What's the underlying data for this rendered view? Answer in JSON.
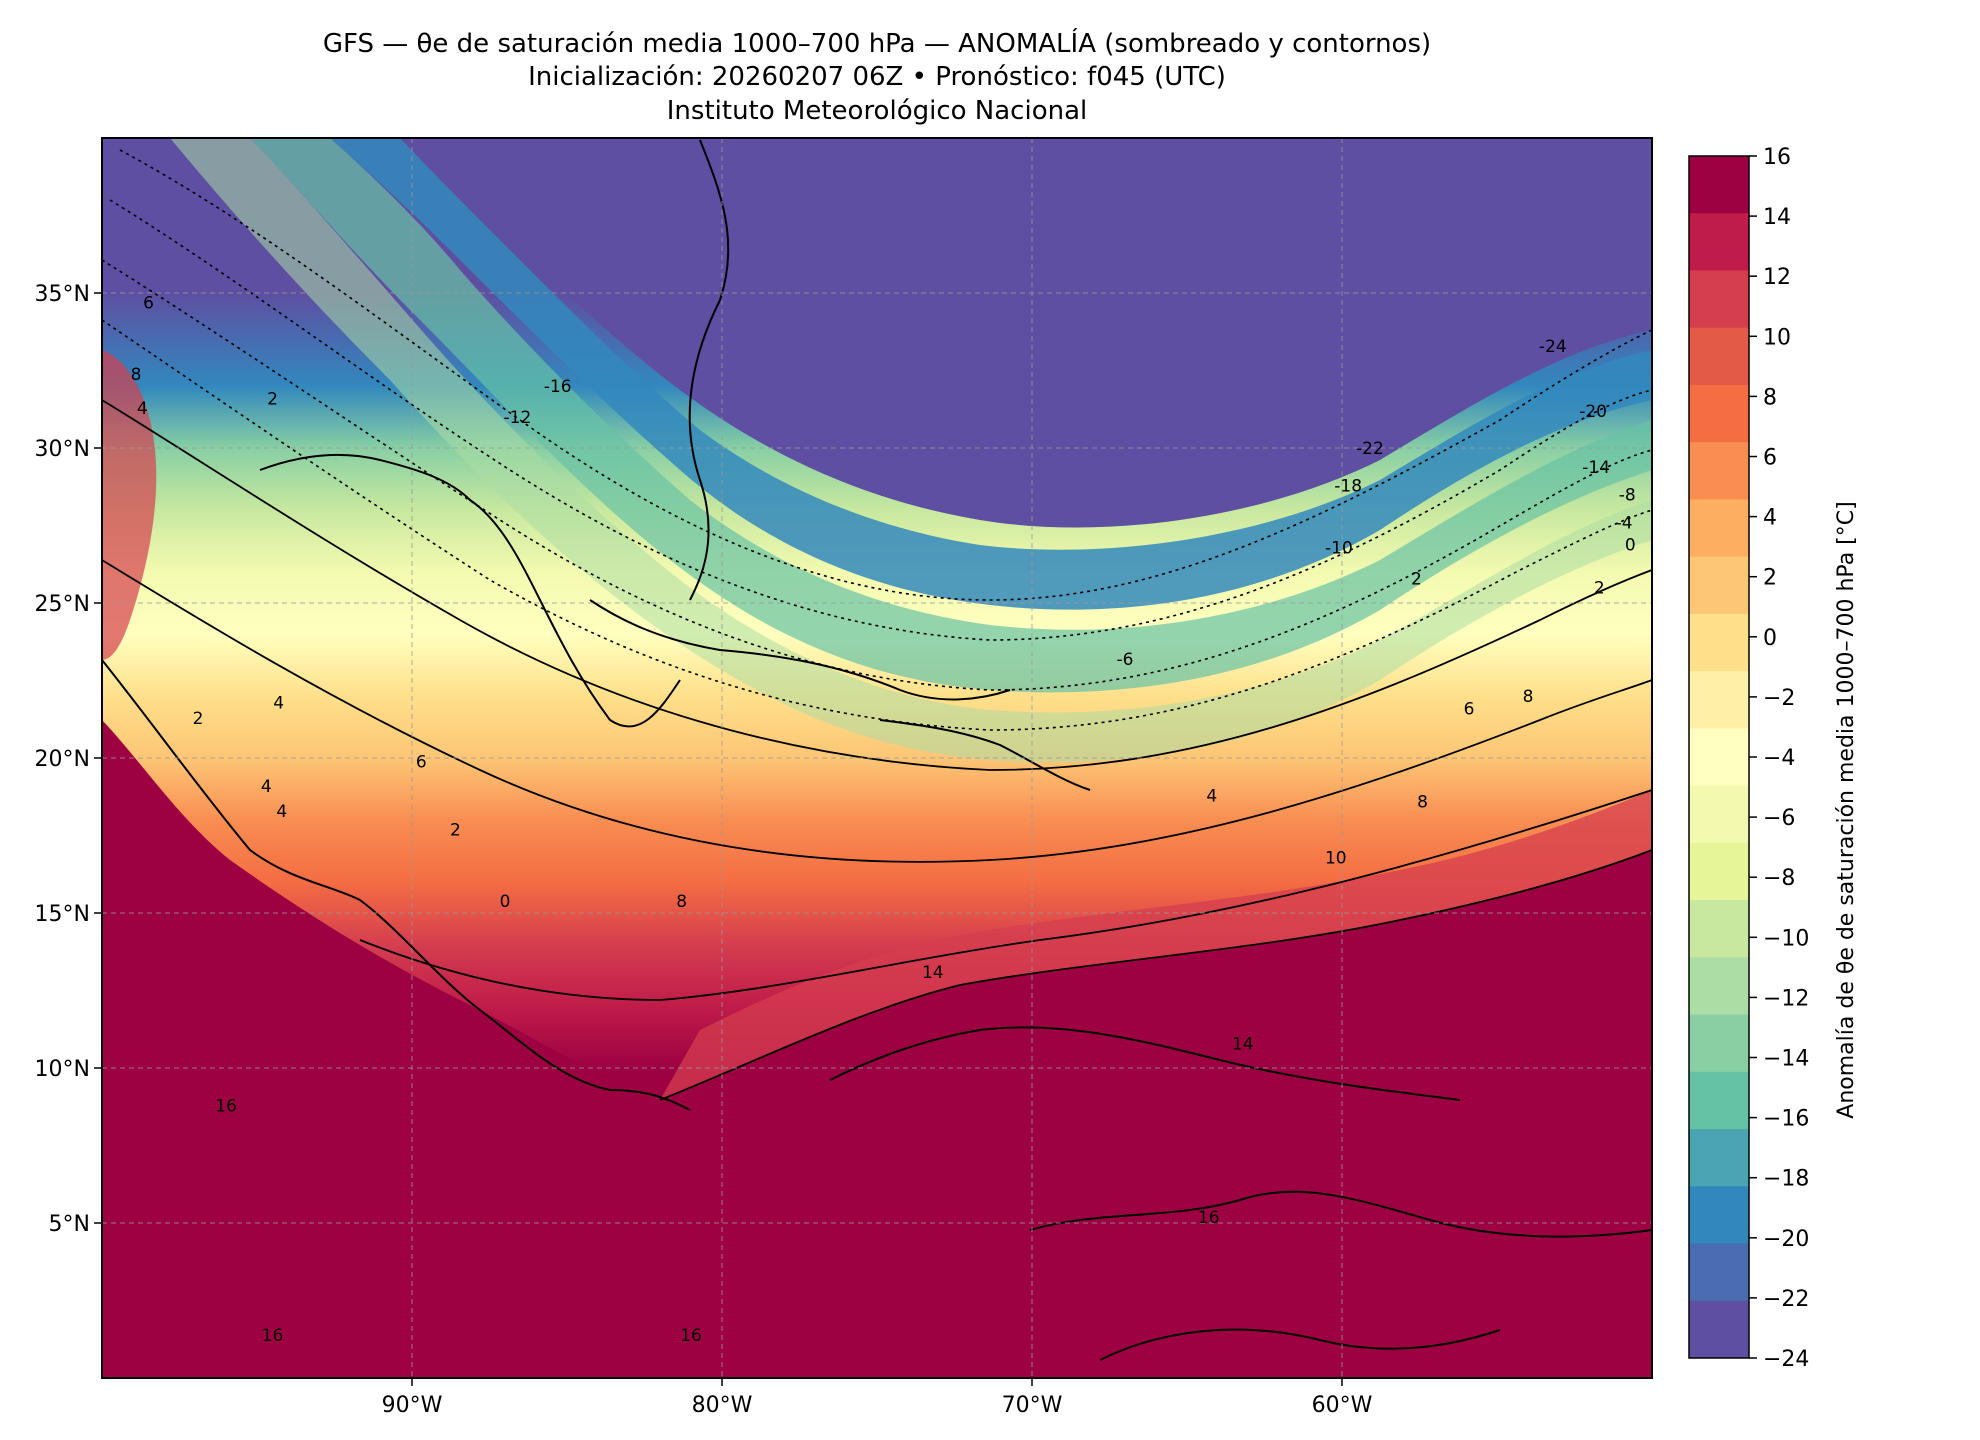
{
  "header": {
    "title_line1": "GFS — θe de saturación media 1000–700 hPa — ANOMALÍA (sombreado y contornos)",
    "title_line2": "Inicialización: 20260207 06Z   •   Pronóstico: f045 (UTC)",
    "title_line3": "Instituto Meteorológico Nacional"
  },
  "map": {
    "lon_range": [
      -100,
      -50
    ],
    "lat_range": [
      0,
      40
    ],
    "lat_ticks": [
      {
        "value": 35,
        "label": "35°N"
      },
      {
        "value": 30,
        "label": "30°N"
      },
      {
        "value": 25,
        "label": "25°N"
      },
      {
        "value": 20,
        "label": "20°N"
      },
      {
        "value": 15,
        "label": "15°N"
      },
      {
        "value": 10,
        "label": "10°N"
      },
      {
        "value": 5,
        "label": "5°N"
      }
    ],
    "lon_ticks": [
      {
        "value": -90,
        "label": "90°W"
      },
      {
        "value": -80,
        "label": "80°W"
      },
      {
        "value": -70,
        "label": "70°W"
      },
      {
        "value": -60,
        "label": "60°W"
      }
    ],
    "gridlines": true,
    "field_bands": [
      {
        "lat": 40,
        "value": -24
      },
      {
        "lat": 35,
        "value": -24
      },
      {
        "lat": 32,
        "value": -20
      },
      {
        "lat": 30,
        "value": -14
      },
      {
        "lat": 28,
        "value": -10
      },
      {
        "lat": 26,
        "value": -6
      },
      {
        "lat": 24,
        "value": -3
      },
      {
        "lat": 22,
        "value": 0
      },
      {
        "lat": 20,
        "value": 3
      },
      {
        "lat": 18,
        "value": 6
      },
      {
        "lat": 16,
        "value": 9
      },
      {
        "lat": 14,
        "value": 12
      },
      {
        "lat": 12,
        "value": 14
      },
      {
        "lat": 10,
        "value": 16
      },
      {
        "lat": 0,
        "value": 16
      }
    ],
    "contour_labels": [
      {
        "text": "-24",
        "lon": -53.2,
        "lat": 33.1
      },
      {
        "text": "-22",
        "lon": -59.1,
        "lat": 29.8
      },
      {
        "text": "-20",
        "lon": -51.9,
        "lat": 31.0
      },
      {
        "text": "-18",
        "lon": -59.8,
        "lat": 28.6
      },
      {
        "text": "-16",
        "lon": -85.3,
        "lat": 31.8
      },
      {
        "text": "-14",
        "lon": -51.8,
        "lat": 29.2
      },
      {
        "text": "-12",
        "lon": -86.6,
        "lat": 30.8
      },
      {
        "text": "-10",
        "lon": -60.1,
        "lat": 26.6
      },
      {
        "text": "-8",
        "lon": -50.8,
        "lat": 28.3
      },
      {
        "text": "-6",
        "lon": -67.0,
        "lat": 23.0
      },
      {
        "text": "-4",
        "lon": -50.9,
        "lat": 27.4
      },
      {
        "text": "0",
        "lon": -50.7,
        "lat": 26.7
      },
      {
        "text": "2",
        "lon": -57.6,
        "lat": 25.6
      },
      {
        "text": "2",
        "lon": -51.7,
        "lat": 25.3
      },
      {
        "text": "6",
        "lon": -98.5,
        "lat": 34.5
      },
      {
        "text": "8",
        "lon": -98.9,
        "lat": 32.2
      },
      {
        "text": "4",
        "lon": -98.7,
        "lat": 31.1
      },
      {
        "text": "2",
        "lon": -94.5,
        "lat": 31.4
      },
      {
        "text": "2",
        "lon": -96.9,
        "lat": 21.1
      },
      {
        "text": "4",
        "lon": -94.3,
        "lat": 21.6
      },
      {
        "text": "6",
        "lon": -89.7,
        "lat": 19.7
      },
      {
        "text": "4",
        "lon": -94.7,
        "lat": 18.9
      },
      {
        "text": "4",
        "lon": -94.2,
        "lat": 18.1
      },
      {
        "text": "2",
        "lon": -88.6,
        "lat": 17.5
      },
      {
        "text": "0",
        "lon": -87.0,
        "lat": 15.2
      },
      {
        "text": "8",
        "lon": -81.3,
        "lat": 15.2
      },
      {
        "text": "4",
        "lon": -64.2,
        "lat": 18.6
      },
      {
        "text": "6",
        "lon": -55.9,
        "lat": 21.4
      },
      {
        "text": "8",
        "lon": -54.0,
        "lat": 21.8
      },
      {
        "text": "8",
        "lon": -57.4,
        "lat": 18.4
      },
      {
        "text": "10",
        "lon": -60.2,
        "lat": 16.6
      },
      {
        "text": "14",
        "lon": -73.2,
        "lat": 12.9
      },
      {
        "text": "14",
        "lon": -63.2,
        "lat": 10.6
      },
      {
        "text": "16",
        "lon": -96.0,
        "lat": 8.6
      },
      {
        "text": "16",
        "lon": -64.3,
        "lat": 5.0
      },
      {
        "text": "16",
        "lon": -81.0,
        "lat": 1.2
      },
      {
        "text": "16",
        "lon": -94.5,
        "lat": 1.2
      }
    ]
  },
  "colorbar": {
    "label": "Anomalía de θe de saturación media 1000–700 hPa [°C]",
    "min": -24,
    "max": 16,
    "step": 2,
    "tick_labels": [
      "16",
      "14",
      "12",
      "10",
      "8",
      "6",
      "4",
      "2",
      "0",
      "−2",
      "−4",
      "−6",
      "−8",
      "−10",
      "−12",
      "−14",
      "−16",
      "−18",
      "−20",
      "−22",
      "−24"
    ],
    "colors_top_to_bottom": [
      "#9e0142",
      "#c01c4a",
      "#d53e4f",
      "#e35a47",
      "#f46d43",
      "#f88e52",
      "#fdae61",
      "#fdc675",
      "#fee08b",
      "#fef0a7",
      "#ffffbf",
      "#f3fab0",
      "#e6f598",
      "#c8e89f",
      "#abdda4",
      "#88cfa4",
      "#66c2a5",
      "#4ba4b1",
      "#3288bd",
      "#4a6cb0",
      "#5e4fa2"
    ]
  }
}
